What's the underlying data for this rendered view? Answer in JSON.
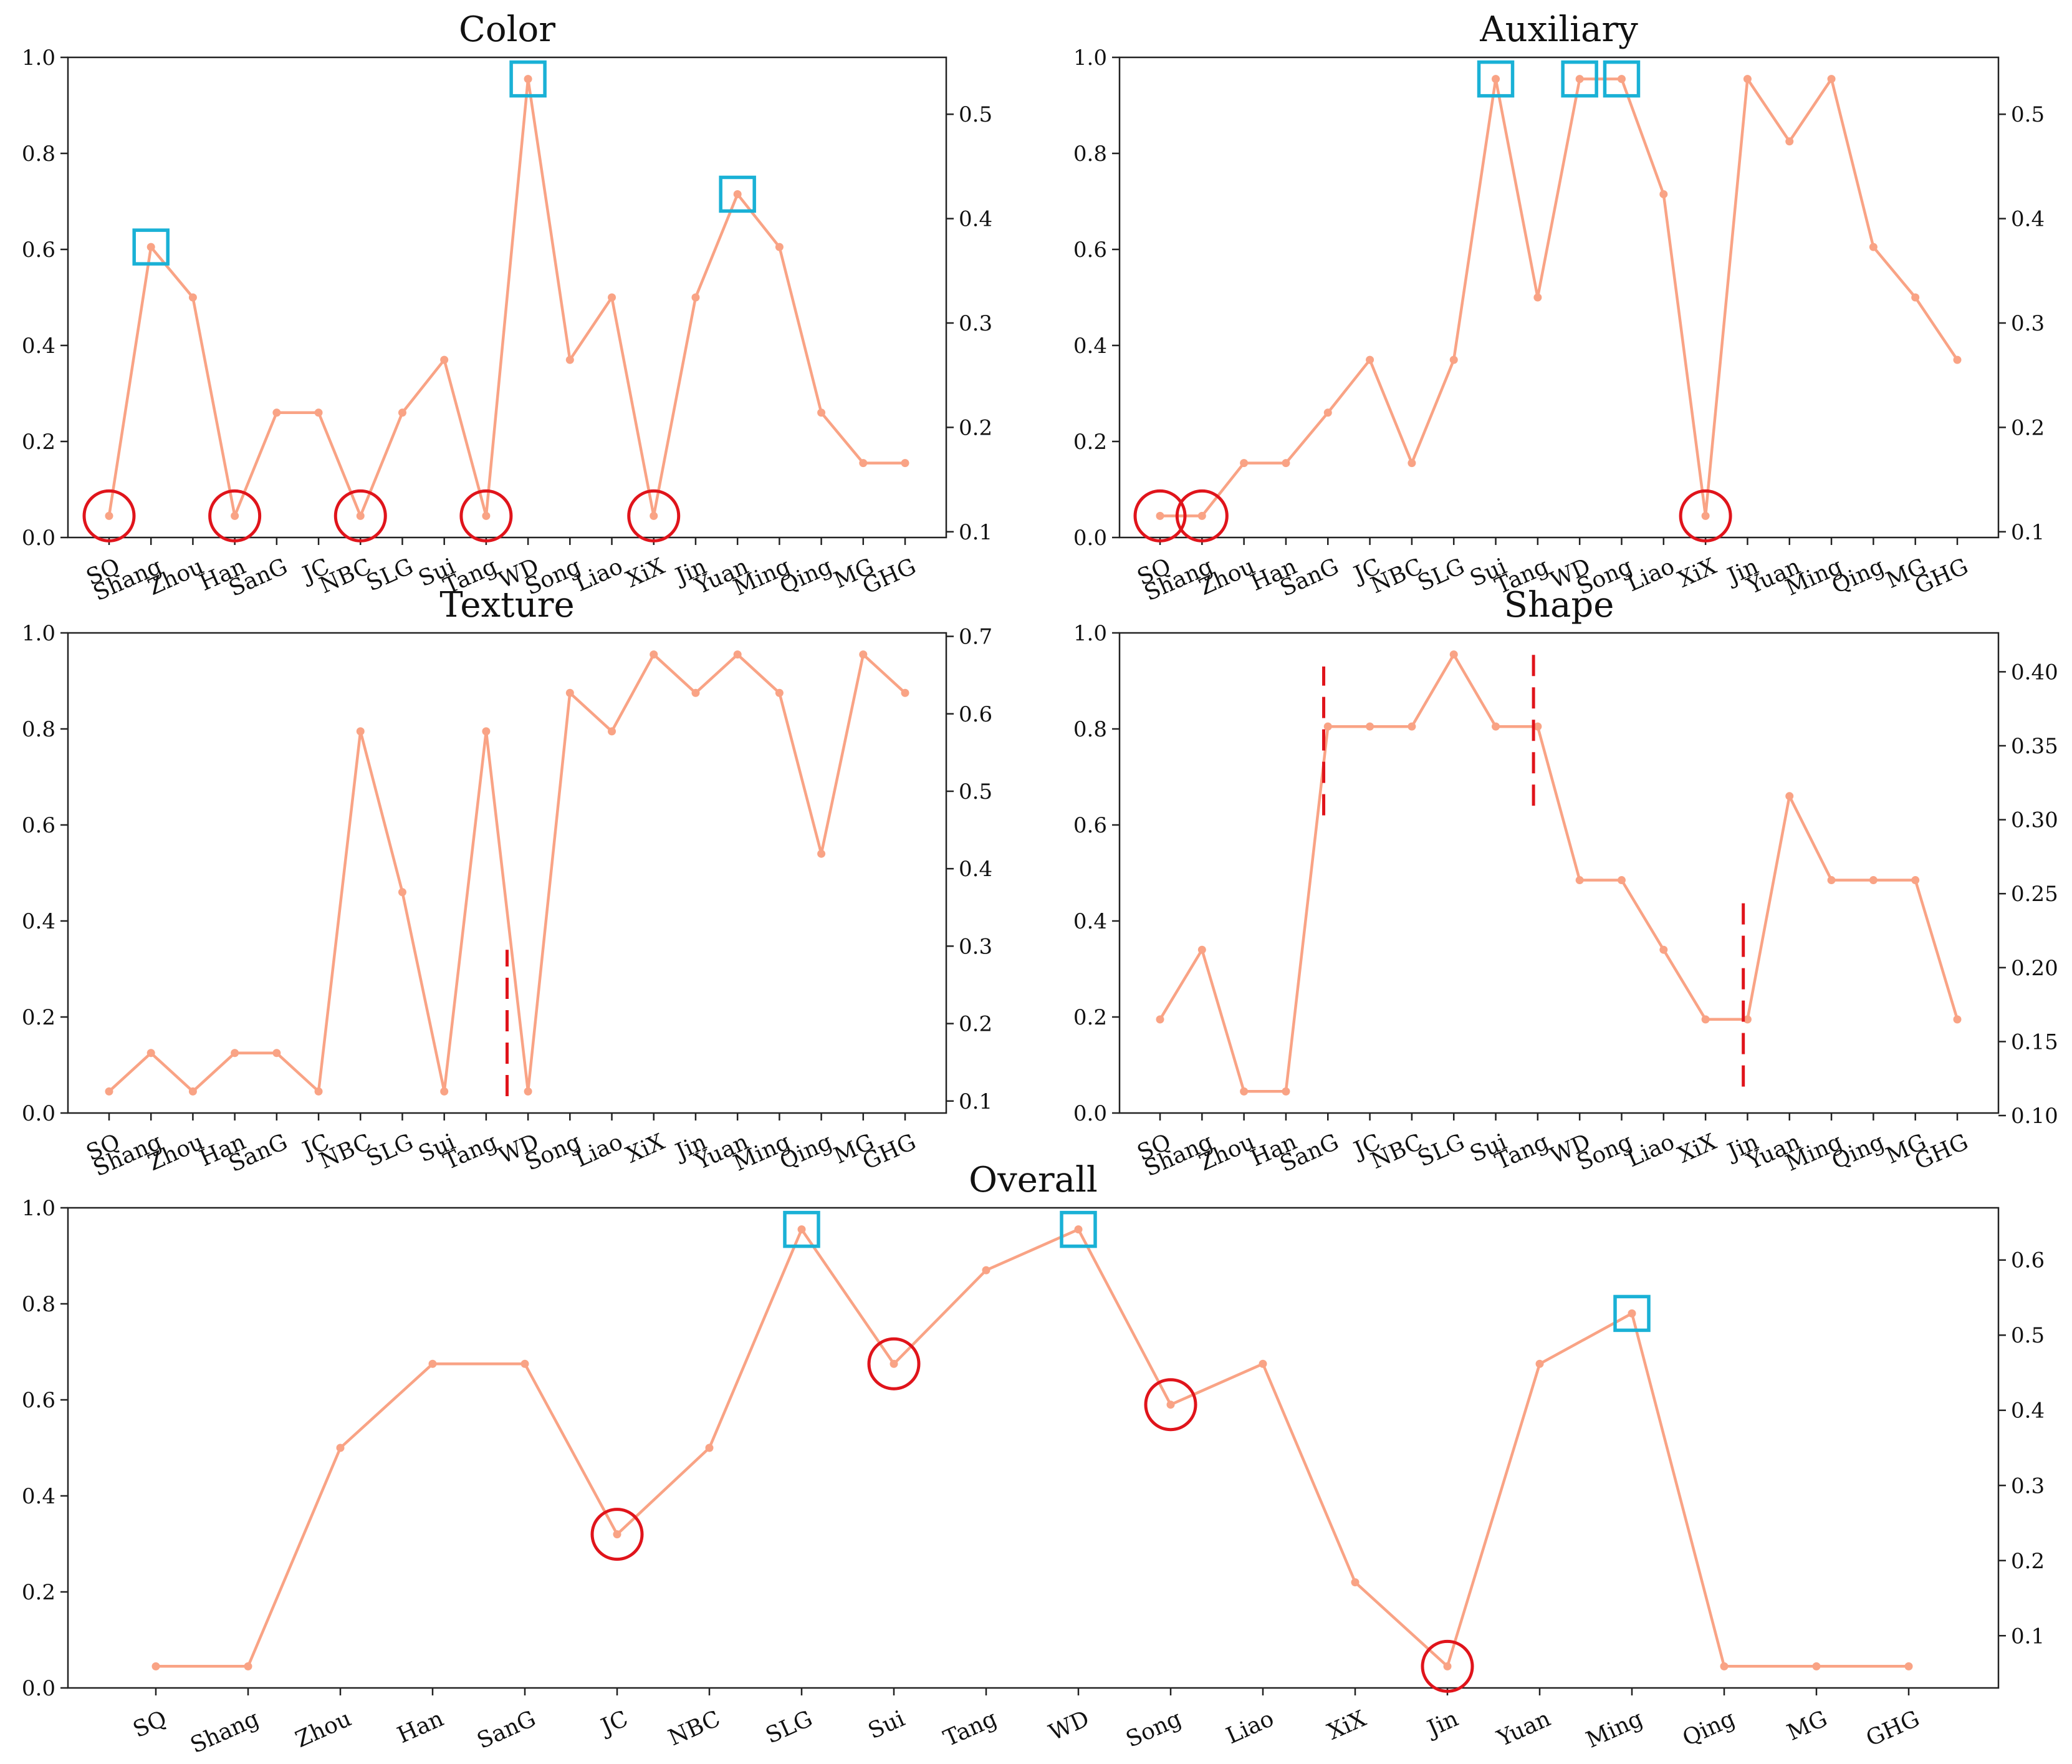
{
  "colors": {
    "series": "#f9a385",
    "circle": "#e0141b",
    "square": "#1ab1d6",
    "dash": "#e0141b"
  },
  "chart_data": [
    {
      "id": "color",
      "type": "line",
      "title": "Color",
      "categories": [
        "SQ",
        "Shang",
        "Zhou",
        "Han",
        "SanG",
        "JC",
        "NBC",
        "SLG",
        "Sui",
        "Tang",
        "WD",
        "Song",
        "Liao",
        "XiX",
        "Jin",
        "Yuan",
        "Ming",
        "Qing",
        "MG",
        "GHG"
      ],
      "values": [
        0.045,
        0.605,
        0.5,
        0.045,
        0.26,
        0.26,
        0.045,
        0.26,
        0.37,
        0.045,
        0.955,
        0.37,
        0.5,
        0.045,
        0.5,
        0.715,
        0.605,
        0.26,
        0.155,
        0.155
      ],
      "ylim": [
        0,
        1.0
      ],
      "yticks": [
        "0.0",
        "0.2",
        "0.4",
        "0.6",
        "0.8",
        "1.0"
      ],
      "y2lim": [
        0.0945,
        0.5545
      ],
      "y2ticks": [
        "0.1",
        "0.2",
        "0.3",
        "0.4",
        "0.5"
      ],
      "circles": [
        "SQ",
        "Han",
        "NBC",
        "Tang",
        "XiX"
      ],
      "squares": [
        "Shang",
        "WD",
        "Yuan"
      ],
      "dashes": []
    },
    {
      "id": "auxiliary",
      "type": "line",
      "title": "Auxiliary",
      "categories": [
        "SQ",
        "Shang",
        "Zhou",
        "Han",
        "SanG",
        "JC",
        "NBC",
        "SLG",
        "Sui",
        "Tang",
        "WD",
        "Song",
        "Liao",
        "XiX",
        "Jin",
        "Yuan",
        "Ming",
        "Qing",
        "MG",
        "GHG"
      ],
      "values": [
        0.045,
        0.045,
        0.155,
        0.155,
        0.26,
        0.37,
        0.155,
        0.37,
        0.955,
        0.5,
        0.955,
        0.955,
        0.715,
        0.045,
        0.955,
        0.825,
        0.955,
        0.605,
        0.5,
        0.37
      ],
      "ylim": [
        0,
        1.0
      ],
      "yticks": [
        "0.0",
        "0.2",
        "0.4",
        "0.6",
        "0.8",
        "1.0"
      ],
      "y2lim": [
        0.0945,
        0.5545
      ],
      "y2ticks": [
        "0.1",
        "0.2",
        "0.3",
        "0.4",
        "0.5"
      ],
      "circles": [
        "SQ",
        "Shang",
        "XiX"
      ],
      "squares": [
        "Sui",
        "WD",
        "Song"
      ],
      "dashes": []
    },
    {
      "id": "texture",
      "type": "line",
      "title": "Texture",
      "categories": [
        "SQ",
        "Shang",
        "Zhou",
        "Han",
        "SanG",
        "JC",
        "NBC",
        "SLG",
        "Sui",
        "Tang",
        "WD",
        "Song",
        "Liao",
        "XiX",
        "Jin",
        "Yuan",
        "Ming",
        "Qing",
        "MG",
        "GHG"
      ],
      "values": [
        0.045,
        0.125,
        0.045,
        0.125,
        0.125,
        0.045,
        0.795,
        0.46,
        0.045,
        0.795,
        0.045,
        0.875,
        0.795,
        0.955,
        0.875,
        0.955,
        0.875,
        0.54,
        0.955,
        0.875
      ],
      "ylim": [
        0,
        1.0
      ],
      "yticks": [
        "0.0",
        "0.2",
        "0.4",
        "0.6",
        "0.8",
        "1.0"
      ],
      "y2lim": [
        0.0845,
        0.7045
      ],
      "y2ticks": [
        "0.1",
        "0.2",
        "0.3",
        "0.4",
        "0.5",
        "0.6",
        "0.7"
      ],
      "circles": [],
      "squares": [],
      "dashes": [
        {
          "at": 9.5,
          "from": 0.035,
          "to": 0.34
        }
      ]
    },
    {
      "id": "shape",
      "type": "line",
      "title": "Shape",
      "categories": [
        "SQ",
        "Shang",
        "Zhou",
        "Han",
        "SanG",
        "JC",
        "NBC",
        "SLG",
        "Sui",
        "Tang",
        "WD",
        "Song",
        "Liao",
        "XiX",
        "Jin",
        "Yuan",
        "Ming",
        "Qing",
        "MG",
        "GHG"
      ],
      "values": [
        0.195,
        0.34,
        0.045,
        0.045,
        0.805,
        0.805,
        0.805,
        0.955,
        0.805,
        0.805,
        0.485,
        0.485,
        0.34,
        0.195,
        0.195,
        0.66,
        0.485,
        0.485,
        0.485,
        0.195
      ],
      "ylim": [
        0,
        1.0
      ],
      "yticks": [
        "0.0",
        "0.2",
        "0.4",
        "0.6",
        "0.8",
        "1.0"
      ],
      "y2lim": [
        0.1017,
        0.4263
      ],
      "y2ticks": [
        "0.10",
        "0.15",
        "0.20",
        "0.25",
        "0.30",
        "0.35",
        "0.40"
      ],
      "circles": [],
      "squares": [],
      "dashes": [
        {
          "at": 3.9,
          "from": 0.62,
          "to": 0.93
        },
        {
          "at": 8.9,
          "from": 0.64,
          "to": 0.96
        },
        {
          "at": 13.9,
          "from": 0.055,
          "to": 0.44
        }
      ]
    },
    {
      "id": "overall",
      "type": "line",
      "title": "Overall",
      "categories": [
        "SQ",
        "Shang",
        "Zhou",
        "Han",
        "SanG",
        "JC",
        "NBC",
        "SLG",
        "Sui",
        "Tang",
        "WD",
        "Song",
        "Liao",
        "XiX",
        "Jin",
        "Yuan",
        "Ming",
        "Qing",
        "MG",
        "GHG"
      ],
      "values": [
        0.045,
        0.045,
        0.5,
        0.675,
        0.675,
        0.32,
        0.5,
        0.955,
        0.675,
        0.87,
        0.955,
        0.59,
        0.675,
        0.22,
        0.045,
        0.675,
        0.78,
        0.045,
        0.045,
        0.045
      ],
      "ylim": [
        0,
        1.0
      ],
      "yticks": [
        "0.0",
        "0.2",
        "0.4",
        "0.6",
        "0.8",
        "1.0"
      ],
      "y2lim": [
        0.0305,
        0.6695
      ],
      "y2ticks": [
        "0.1",
        "0.2",
        "0.3",
        "0.4",
        "0.5",
        "0.6"
      ],
      "circles": [
        "JC",
        "Sui",
        "Song",
        "Jin"
      ],
      "squares": [
        "SLG",
        "WD",
        "Ming"
      ],
      "dashes": []
    }
  ]
}
